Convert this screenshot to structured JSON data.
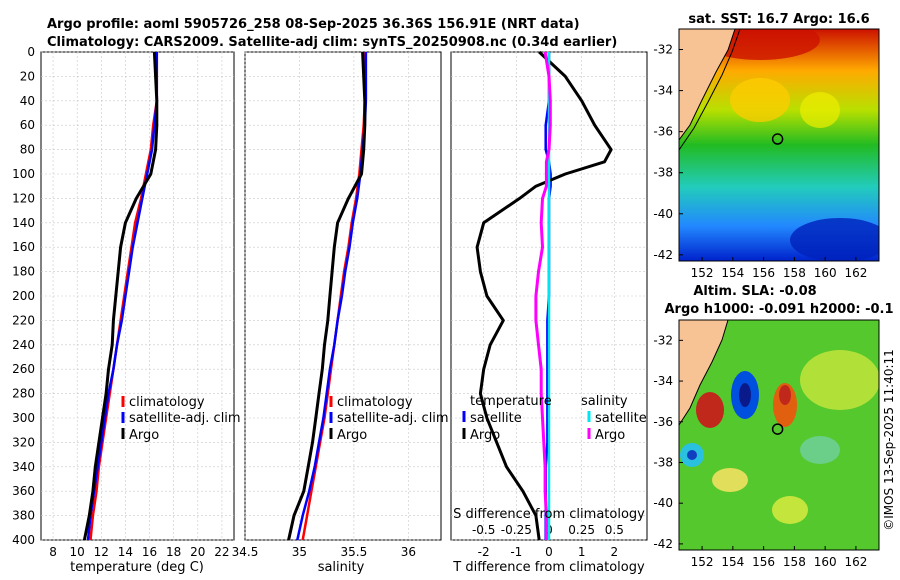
{
  "title": {
    "line1": "Argo profile: aoml 5905726_258 08-Sep-2025 36.36S 156.91E (NRT data)",
    "line2": "Climatology: CARS2009. Satellite-adj clim: synTS_20250908.nc (0.34d earlier)"
  },
  "credit": "©IMOS 13-Sep-2025 11:40:11",
  "colors": {
    "climatology": "#ff0000",
    "satellite": "#0000ff",
    "argo": "#000000",
    "sat_salinity": "#00e5ee",
    "argo_salinity": "#ff00ff",
    "land": "#f7c394"
  },
  "chart_data": [
    {
      "type": "line",
      "name": "temperature-profile",
      "xlabel": "temperature (deg C)",
      "ylabel": "",
      "xlim": [
        7,
        23
      ],
      "ylim": [
        0,
        400
      ],
      "xticks": [
        "8",
        "10",
        "12",
        "14",
        "16",
        "18",
        "20",
        "22"
      ],
      "yticks": [
        "0",
        "20",
        "40",
        "60",
        "80",
        "100",
        "120",
        "140",
        "160",
        "180",
        "200",
        "220",
        "240",
        "260",
        "280",
        "300",
        "320",
        "340",
        "360",
        "380",
        "400"
      ],
      "legend": [
        "climatology",
        "satellite-adj. clim",
        "Argo"
      ],
      "depth": [
        0,
        40,
        60,
        80,
        100,
        120,
        140,
        160,
        180,
        200,
        220,
        240,
        260,
        280,
        300,
        320,
        340,
        360,
        380,
        400
      ],
      "series": [
        {
          "name": "climatology",
          "color": "#ff0000",
          "values": [
            16.6,
            16.6,
            16.3,
            16.1,
            15.7,
            15.3,
            14.8,
            14.5,
            14.2,
            13.9,
            13.6,
            13.3,
            13.0,
            12.7,
            12.4,
            12.1,
            11.8,
            11.6,
            11.3,
            11.1
          ]
        },
        {
          "name": "satellite-adj. clim",
          "color": "#0000ff",
          "values": [
            16.6,
            16.6,
            16.4,
            16.2,
            15.8,
            15.4,
            15.0,
            14.6,
            14.3,
            14.0,
            13.7,
            13.3,
            13.0,
            12.6,
            12.3,
            12.0,
            11.7,
            11.4,
            11.1,
            10.9
          ]
        },
        {
          "name": "Argo",
          "color": "#000000",
          "values": [
            16.4,
            16.6,
            16.6,
            16.5,
            16.1,
            14.9,
            14.0,
            13.6,
            13.4,
            13.2,
            13.0,
            12.9,
            12.6,
            12.4,
            12.1,
            11.8,
            11.5,
            11.3,
            11.0,
            10.6
          ]
        }
      ]
    },
    {
      "type": "line",
      "name": "salinity-profile",
      "xlabel": "salinity",
      "ylabel": "",
      "xlim": [
        34.5,
        36.3
      ],
      "ylim": [
        0,
        400
      ],
      "xticks": [
        "34.5",
        "35",
        "35.5",
        "36"
      ],
      "legend": [
        "climatology",
        "satellite-adj. clim",
        "Argo"
      ],
      "depth": [
        0,
        40,
        60,
        80,
        100,
        120,
        140,
        160,
        180,
        200,
        220,
        240,
        260,
        280,
        300,
        320,
        340,
        360,
        380,
        400
      ],
      "series": [
        {
          "name": "climatology",
          "color": "#ff0000",
          "values": [
            35.6,
            35.6,
            35.59,
            35.57,
            35.55,
            35.52,
            35.48,
            35.45,
            35.41,
            35.38,
            35.35,
            35.32,
            35.29,
            35.26,
            35.23,
            35.19,
            35.15,
            35.11,
            35.07,
            35.03
          ]
        },
        {
          "name": "satellite-adj. clim",
          "color": "#0000ff",
          "values": [
            35.61,
            35.61,
            35.6,
            35.58,
            35.56,
            35.53,
            35.49,
            35.46,
            35.42,
            35.39,
            35.35,
            35.32,
            35.28,
            35.25,
            35.22,
            35.18,
            35.14,
            35.09,
            35.03,
            34.98
          ]
        },
        {
          "name": "Argo",
          "color": "#000000",
          "values": [
            35.58,
            35.6,
            35.6,
            35.59,
            35.57,
            35.45,
            35.35,
            35.32,
            35.3,
            35.28,
            35.26,
            35.23,
            35.21,
            35.18,
            35.15,
            35.12,
            35.08,
            35.04,
            34.95,
            34.9
          ]
        }
      ]
    },
    {
      "type": "line",
      "name": "difference-profile",
      "xlabel": "T difference from climatology",
      "x2label": "S difference from climatology",
      "xlim": [
        -3,
        3
      ],
      "x2lim": [
        -0.75,
        0.75
      ],
      "ylim": [
        0,
        400
      ],
      "xticks": [
        "-2",
        "-1",
        "0",
        "1",
        "2"
      ],
      "x2ticks": [
        "-0.5",
        "-0.25",
        "0",
        "0.25",
        "0.5"
      ],
      "legend_headers": [
        "temperature",
        "salinity"
      ],
      "legend": [
        "satellite",
        "Argo",
        "satellite",
        "Argo"
      ],
      "depth": [
        0,
        20,
        40,
        60,
        80,
        90,
        100,
        110,
        120,
        140,
        160,
        180,
        200,
        220,
        240,
        260,
        280,
        300,
        320,
        340,
        360,
        380,
        400
      ],
      "series": [
        {
          "name": "T satellite",
          "color": "#0000ff",
          "values": [
            0,
            0,
            0,
            -0.1,
            -0.1,
            0,
            0.05,
            0.05,
            0,
            0,
            0,
            0,
            0,
            -0.05,
            -0.05,
            -0.05,
            -0.05,
            -0.05,
            -0.05,
            -0.1,
            -0.1,
            -0.1,
            -0.1
          ]
        },
        {
          "name": "T Argo",
          "color": "#000000",
          "values": [
            -0.3,
            0.5,
            1.0,
            1.4,
            1.9,
            1.7,
            0.5,
            -0.4,
            -0.9,
            -2.0,
            -2.2,
            -2.1,
            -1.9,
            -1.4,
            -1.8,
            -2.0,
            -2.1,
            -1.9,
            -1.6,
            -1.3,
            -0.8,
            -0.4,
            -0.3
          ]
        },
        {
          "name": "S satellite",
          "color": "#00e5ee",
          "values": [
            0,
            0,
            0,
            0,
            0,
            0,
            0,
            0,
            0,
            0,
            0,
            0,
            0,
            0,
            0,
            0,
            0,
            0,
            0,
            0,
            0,
            0,
            0
          ]
        },
        {
          "name": "S Argo",
          "color": "#ff00ff",
          "values": [
            -0.03,
            0,
            0.01,
            0.01,
            0,
            -0.02,
            -0.02,
            -0.02,
            -0.05,
            -0.06,
            -0.05,
            -0.08,
            -0.1,
            -0.1,
            -0.08,
            -0.06,
            -0.06,
            -0.05,
            -0.04,
            -0.03,
            -0.03,
            -0.02,
            -0.02
          ]
        }
      ]
    },
    {
      "type": "heatmap",
      "name": "sst-map",
      "title": "sat. SST: 16.7 Argo: 16.6",
      "xlim": [
        150.5,
        163.5
      ],
      "ylim": [
        -42.3,
        -31
      ]
    },
    {
      "type": "heatmap",
      "name": "sla-map",
      "title_line1": "Altim. SLA: -0.08",
      "title_line2": "Argo h1000: -0.091 h2000: -0.1",
      "xlim": [
        150.5,
        163.5
      ],
      "ylim": [
        -42.3,
        -31
      ]
    }
  ],
  "maps": {
    "xticks": [
      "152",
      "154",
      "156",
      "158",
      "160",
      "162"
    ],
    "yticks": [
      "-32",
      "-34",
      "-36",
      "-38",
      "-40",
      "-42"
    ],
    "argo_location": {
      "lon": 156.91,
      "lat": -36.36
    }
  }
}
